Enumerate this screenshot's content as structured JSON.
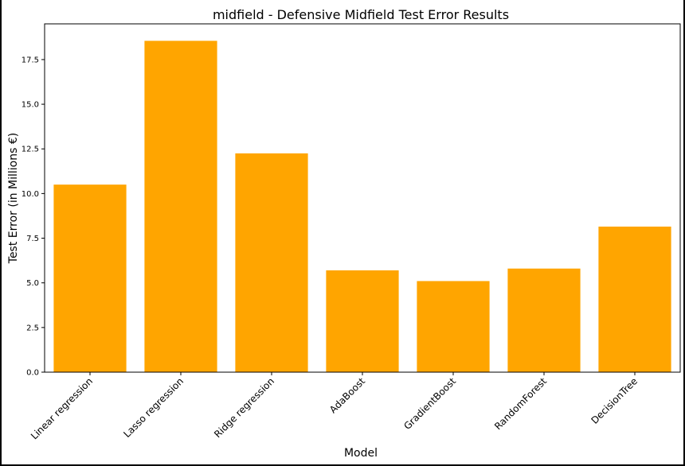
{
  "chart_data": {
    "type": "bar",
    "title": "midfield - Defensive Midfield Test Error Results",
    "xlabel": "Model",
    "ylabel": "Test Error (in Millions €)",
    "categories": [
      "Linear regression",
      "Lasso regression",
      "Ridge regression",
      "AdaBoost",
      "GradientBoost",
      "RandomForest",
      "DecisionTree"
    ],
    "values": [
      10.5,
      18.55,
      12.25,
      5.7,
      5.1,
      5.8,
      8.15
    ],
    "ylim": [
      0,
      19.5
    ],
    "yticks": [
      "0.0",
      "2.5",
      "5.0",
      "7.5",
      "10.0",
      "12.5",
      "15.0",
      "17.5"
    ],
    "bar_color": "#FFA500",
    "grid": false,
    "legend": "none"
  }
}
